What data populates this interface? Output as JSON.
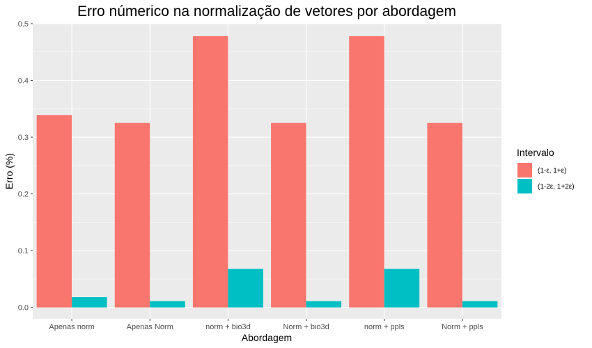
{
  "chart_data": {
    "type": "bar",
    "title": "Erro númerico na normalização de vetores por abordagem",
    "xlabel": "Abordagem",
    "ylabel": "Erro (%)",
    "categories": [
      "Apenas norm",
      "Apenas Norm",
      "norm + bio3d",
      "Norm + bio3d",
      "norm + ppls",
      "Norm + ppls"
    ],
    "series": [
      {
        "name": "(1-ε, 1+ε)",
        "color": "#F8766D",
        "values": [
          0.339,
          0.325,
          0.478,
          0.325,
          0.478,
          0.325
        ]
      },
      {
        "name": "(1-2ε, 1+2ε)",
        "color": "#00BFC4",
        "values": [
          0.018,
          0.011,
          0.068,
          0.011,
          0.068,
          0.011
        ]
      }
    ],
    "ylim": [
      -0.02,
      0.5
    ],
    "yticks": [
      0.0,
      0.1,
      0.2,
      0.3,
      0.4,
      0.5
    ],
    "ytick_labels": [
      "0.0",
      "0.1",
      "0.2",
      "0.3",
      "0.4",
      "0.5"
    ],
    "legend": {
      "title": "Intervalo",
      "placement": "right"
    },
    "grid": true,
    "panel_background": "#EBEBEB"
  }
}
